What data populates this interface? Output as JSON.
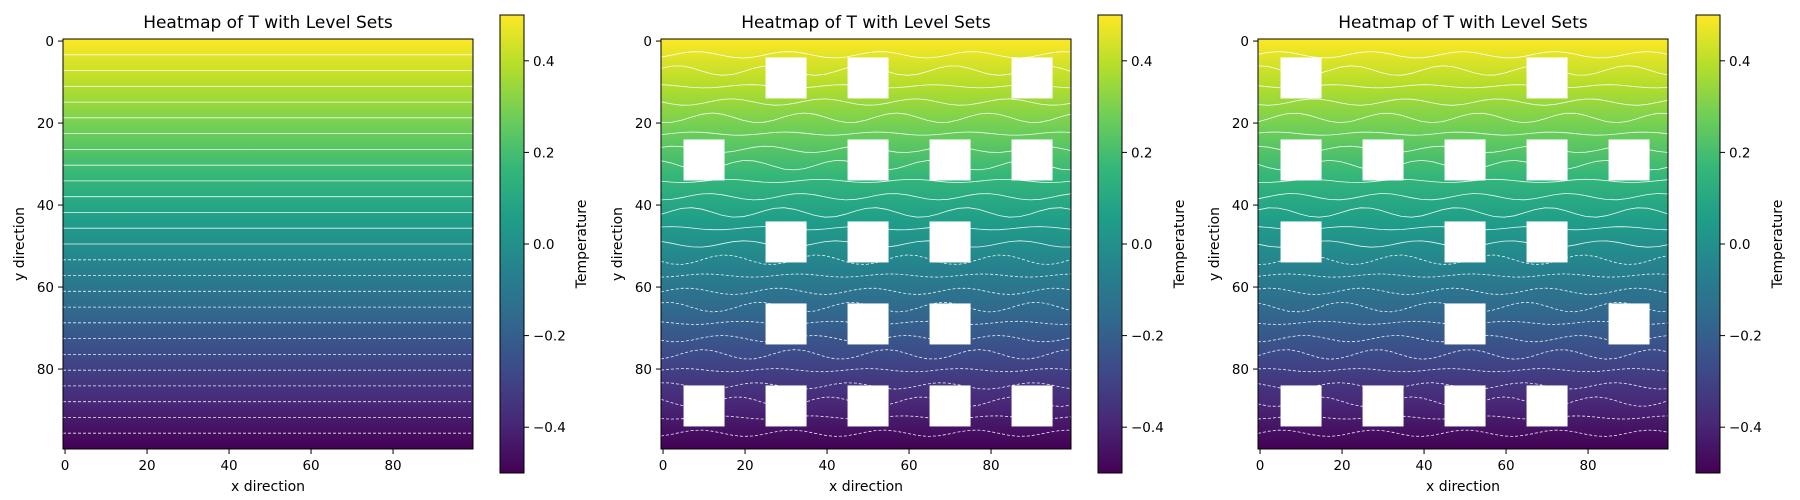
{
  "chart_data": [
    {
      "type": "heatmap",
      "title": "Heatmap of T with Level Sets",
      "xlabel": "x direction",
      "ylabel": "y direction",
      "colorbar_label": "Temperature",
      "x_range": [
        0,
        99
      ],
      "y_range": [
        0,
        99
      ],
      "xticks": [
        0,
        20,
        40,
        60,
        80
      ],
      "yticks": [
        0,
        20,
        40,
        60,
        80
      ],
      "cbar_ticks": [
        0.4,
        0.2,
        0.0,
        -0.2,
        -0.4
      ],
      "cbar_tick_labels": [
        "0.4",
        "0.2",
        "0.0",
        "−0.2",
        "−0.4"
      ],
      "value_range": [
        -0.5,
        0.5
      ],
      "colormap": "viridis",
      "level_sets": "dashed for negative values",
      "obstacles": []
    },
    {
      "type": "heatmap",
      "title": "Heatmap of T with Level Sets",
      "xlabel": "x direction",
      "ylabel": "y direction",
      "colorbar_label": "Temperature",
      "x_range": [
        0,
        99
      ],
      "y_range": [
        0,
        99
      ],
      "xticks": [
        0,
        20,
        40,
        60,
        80
      ],
      "yticks": [
        0,
        20,
        40,
        60,
        80
      ],
      "cbar_ticks": [
        0.4,
        0.2,
        0.0,
        -0.2,
        -0.4
      ],
      "cbar_tick_labels": [
        "0.4",
        "0.2",
        "0.0",
        "−0.2",
        "−0.4"
      ],
      "value_range": [
        -0.5,
        0.5
      ],
      "colormap": "viridis",
      "level_sets": "dashed for negative values",
      "obstacles": [
        {
          "x0": 25,
          "x1": 35,
          "y0": 4,
          "y1": 14
        },
        {
          "x0": 45,
          "x1": 55,
          "y0": 4,
          "y1": 14
        },
        {
          "x0": 85,
          "x1": 95,
          "y0": 4,
          "y1": 14
        },
        {
          "x0": 5,
          "x1": 15,
          "y0": 24,
          "y1": 34
        },
        {
          "x0": 45,
          "x1": 55,
          "y0": 24,
          "y1": 34
        },
        {
          "x0": 65,
          "x1": 75,
          "y0": 24,
          "y1": 34
        },
        {
          "x0": 85,
          "x1": 95,
          "y0": 24,
          "y1": 34
        },
        {
          "x0": 25,
          "x1": 35,
          "y0": 44,
          "y1": 54
        },
        {
          "x0": 45,
          "x1": 55,
          "y0": 44,
          "y1": 54
        },
        {
          "x0": 65,
          "x1": 75,
          "y0": 44,
          "y1": 54
        },
        {
          "x0": 25,
          "x1": 35,
          "y0": 64,
          "y1": 74
        },
        {
          "x0": 45,
          "x1": 55,
          "y0": 64,
          "y1": 74
        },
        {
          "x0": 65,
          "x1": 75,
          "y0": 64,
          "y1": 74
        },
        {
          "x0": 5,
          "x1": 15,
          "y0": 84,
          "y1": 94
        },
        {
          "x0": 25,
          "x1": 35,
          "y0": 84,
          "y1": 94
        },
        {
          "x0": 45,
          "x1": 55,
          "y0": 84,
          "y1": 94
        },
        {
          "x0": 65,
          "x1": 75,
          "y0": 84,
          "y1": 94
        },
        {
          "x0": 85,
          "x1": 95,
          "y0": 84,
          "y1": 94
        }
      ]
    },
    {
      "type": "heatmap",
      "title": "Heatmap of T with Level Sets",
      "xlabel": "x direction",
      "ylabel": "y direction",
      "colorbar_label": "Temperature",
      "x_range": [
        0,
        99
      ],
      "y_range": [
        0,
        99
      ],
      "xticks": [
        0,
        20,
        40,
        60,
        80
      ],
      "yticks": [
        0,
        20,
        40,
        60,
        80
      ],
      "cbar_ticks": [
        0.4,
        0.2,
        0.0,
        -0.2,
        -0.4
      ],
      "cbar_tick_labels": [
        "0.4",
        "0.2",
        "0.0",
        "−0.2",
        "−0.4"
      ],
      "value_range": [
        -0.5,
        0.5
      ],
      "colormap": "viridis",
      "level_sets": "dashed for negative values",
      "obstacles": [
        {
          "x0": 5,
          "x1": 15,
          "y0": 4,
          "y1": 14
        },
        {
          "x0": 65,
          "x1": 75,
          "y0": 4,
          "y1": 14
        },
        {
          "x0": 5,
          "x1": 15,
          "y0": 24,
          "y1": 34
        },
        {
          "x0": 25,
          "x1": 35,
          "y0": 24,
          "y1": 34
        },
        {
          "x0": 45,
          "x1": 55,
          "y0": 24,
          "y1": 34
        },
        {
          "x0": 65,
          "x1": 75,
          "y0": 24,
          "y1": 34
        },
        {
          "x0": 85,
          "x1": 95,
          "y0": 24,
          "y1": 34
        },
        {
          "x0": 5,
          "x1": 15,
          "y0": 44,
          "y1": 54
        },
        {
          "x0": 45,
          "x1": 55,
          "y0": 44,
          "y1": 54
        },
        {
          "x0": 65,
          "x1": 75,
          "y0": 44,
          "y1": 54
        },
        {
          "x0": 45,
          "x1": 55,
          "y0": 64,
          "y1": 74
        },
        {
          "x0": 85,
          "x1": 95,
          "y0": 64,
          "y1": 74
        },
        {
          "x0": 5,
          "x1": 15,
          "y0": 84,
          "y1": 94
        },
        {
          "x0": 25,
          "x1": 35,
          "y0": 84,
          "y1": 94
        },
        {
          "x0": 45,
          "x1": 55,
          "y0": 84,
          "y1": 94
        },
        {
          "x0": 65,
          "x1": 75,
          "y0": 84,
          "y1": 94
        }
      ]
    }
  ]
}
